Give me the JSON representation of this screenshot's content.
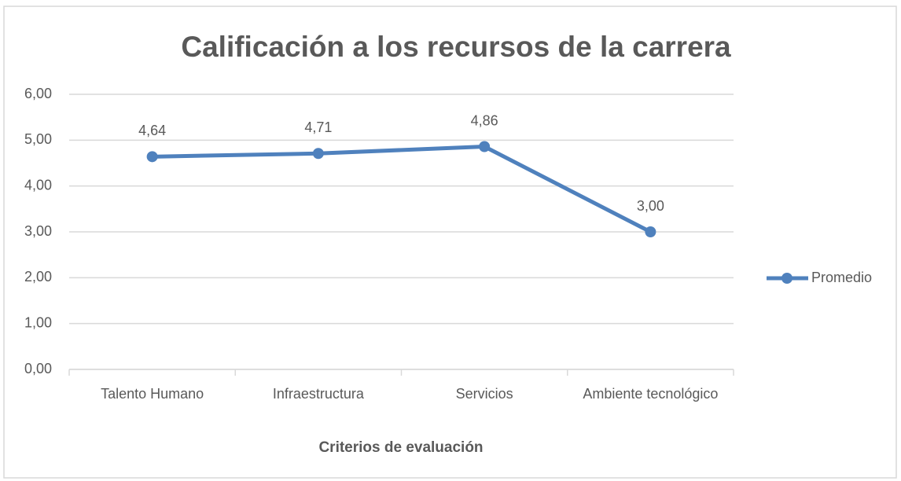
{
  "chart_data": {
    "type": "line",
    "title": "Calificación a los recursos de la carrera",
    "x_label": "Criterios de evaluación",
    "categories": [
      "Talento Humano",
      "Infraestructura",
      "Servicios",
      "Ambiente tecnológico"
    ],
    "series": [
      {
        "name": "Promedio",
        "color": "#4f81bd",
        "values": [
          4.64,
          4.71,
          4.86,
          3.0
        ],
        "value_labels": [
          "4,64",
          "4,71",
          "4,86",
          "3,00"
        ]
      }
    ],
    "ylim": [
      0,
      6
    ],
    "yticks": [
      {
        "value": 0,
        "label": "0,00"
      },
      {
        "value": 1,
        "label": "1,00"
      },
      {
        "value": 2,
        "label": "2,00"
      },
      {
        "value": 3,
        "label": "3,00"
      },
      {
        "value": 4,
        "label": "4,00"
      },
      {
        "value": 5,
        "label": "5,00"
      },
      {
        "value": 6,
        "label": "6,00"
      }
    ],
    "grid": true,
    "legend": "right"
  }
}
